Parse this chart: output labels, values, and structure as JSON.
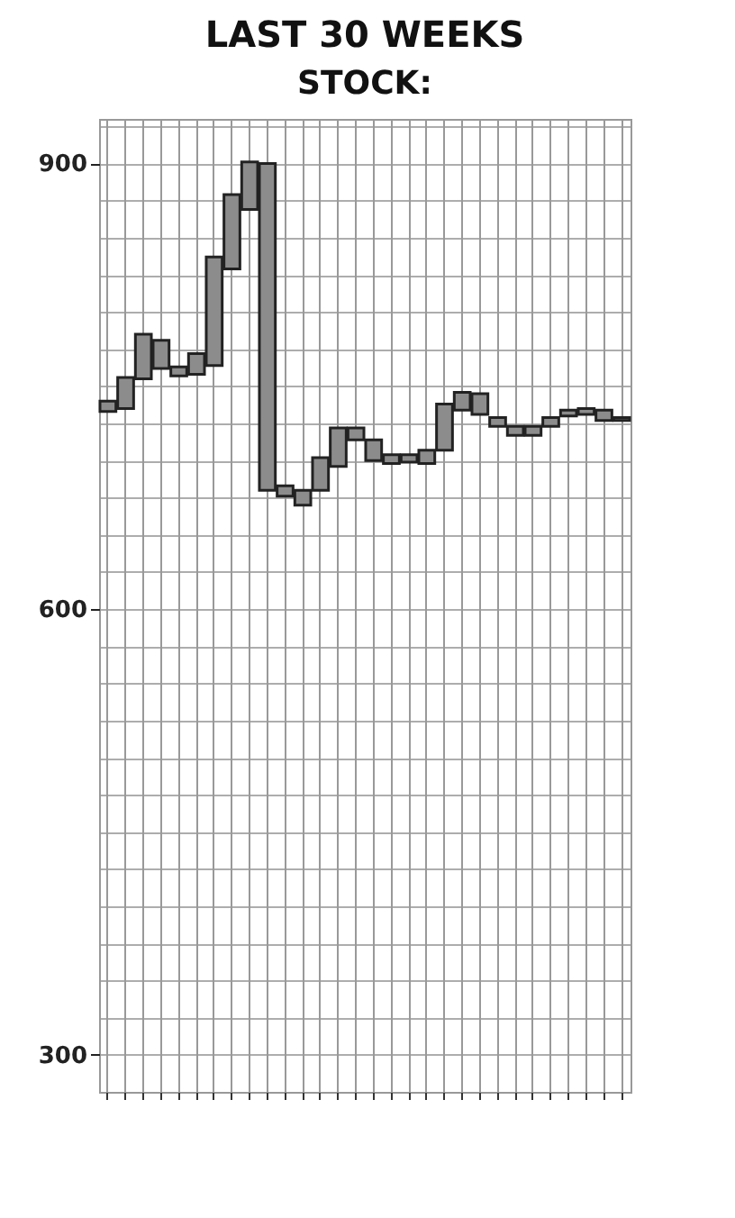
{
  "chart_data": {
    "type": "bar",
    "title": "LAST 30 WEEKS",
    "subtitle": "STOCK:",
    "categories": [
      null,
      null,
      null,
      null,
      null,
      null,
      null,
      null,
      null,
      null,
      null,
      null,
      null,
      null,
      null,
      null,
      null,
      null,
      null,
      null,
      null,
      null,
      null,
      null,
      null,
      null,
      null,
      null,
      null,
      null
    ],
    "base": [
      733,
      735,
      755,
      762,
      757,
      758,
      764,
      829,
      869,
      680,
      676,
      670,
      680,
      696,
      714,
      700,
      698,
      699,
      698,
      707,
      734,
      731,
      723,
      717,
      717,
      723,
      730,
      731,
      727,
      727
    ],
    "values": [
      7,
      21,
      30,
      19,
      6,
      14,
      73,
      50,
      32,
      220,
      7,
      10,
      22,
      26,
      8,
      14,
      6,
      5,
      9,
      31,
      12,
      14,
      6,
      6,
      6,
      6,
      4,
      4,
      7,
      2
    ],
    "color": "#8c8c8c",
    "ylim": [
      275,
      930
    ],
    "yticks": [
      {
        "value": 275,
        "label": null
      },
      300,
      {
        "value": 325,
        "label": null
      },
      {
        "value": 350,
        "label": null
      },
      {
        "value": 375,
        "label": null
      },
      {
        "value": 400,
        "label": null
      },
      {
        "value": 425,
        "label": null
      },
      {
        "value": 450,
        "label": null
      },
      {
        "value": 475,
        "label": null
      },
      {
        "value": 500,
        "label": null
      },
      {
        "value": 525,
        "label": null
      },
      {
        "value": 550,
        "label": null
      },
      {
        "value": 575,
        "label": null
      },
      600,
      {
        "value": 625,
        "label": null
      },
      {
        "value": 650,
        "label": null
      },
      {
        "value": 675,
        "label": null
      },
      {
        "value": 700,
        "label": null
      },
      {
        "value": 725,
        "label": null
      },
      {
        "value": 750,
        "label": null
      },
      {
        "value": 775,
        "label": null
      },
      {
        "value": 800,
        "label": null
      },
      {
        "value": 825,
        "label": null
      },
      {
        "value": 850,
        "label": null
      },
      {
        "value": 875,
        "label": null
      },
      900,
      {
        "value": 925,
        "label": null
      }
    ],
    "grid": true,
    "tick_labels": "y"
  }
}
